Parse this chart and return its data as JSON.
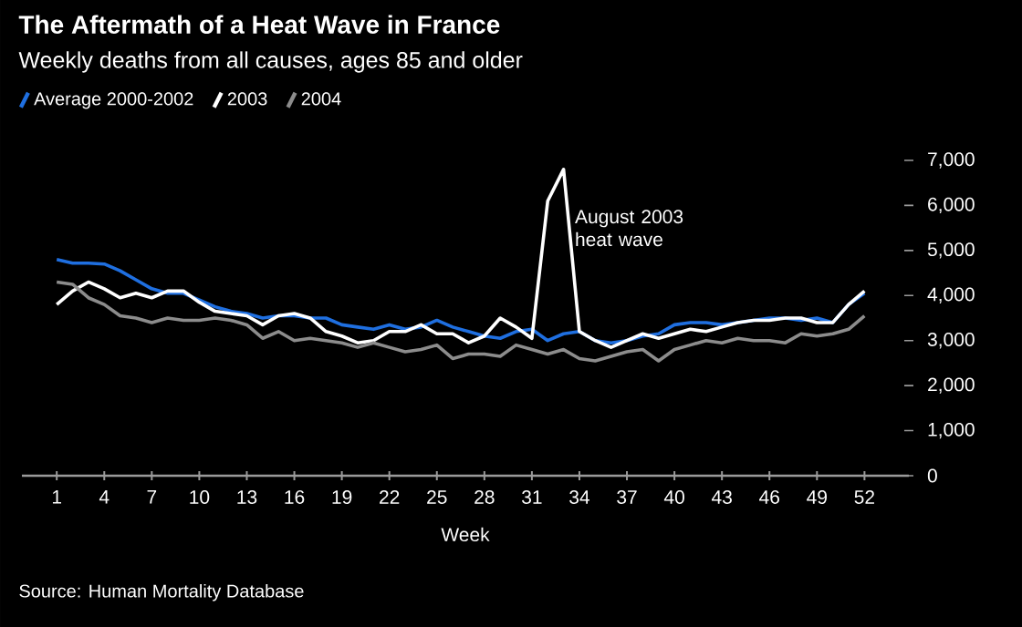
{
  "chart_data": {
    "type": "line",
    "title": "The Aftermath of a Heat Wave in France",
    "subtitle": "Weekly deaths from all causes, ages 85 and older",
    "xlabel": "Week",
    "x": [
      1,
      2,
      3,
      4,
      5,
      6,
      7,
      8,
      9,
      10,
      11,
      12,
      13,
      14,
      15,
      16,
      17,
      18,
      19,
      20,
      21,
      22,
      23,
      24,
      25,
      26,
      27,
      28,
      29,
      30,
      31,
      32,
      33,
      34,
      35,
      36,
      37,
      38,
      39,
      40,
      41,
      42,
      43,
      44,
      45,
      46,
      47,
      48,
      49,
      50,
      51,
      52
    ],
    "series": [
      {
        "name": "Average 2000-2002",
        "color": "#1f6fe0",
        "values": [
          4800,
          4720,
          4720,
          4700,
          4550,
          4350,
          4150,
          4050,
          4050,
          3900,
          3750,
          3650,
          3600,
          3500,
          3550,
          3550,
          3500,
          3500,
          3350,
          3300,
          3250,
          3350,
          3250,
          3300,
          3450,
          3300,
          3200,
          3100,
          3050,
          3200,
          3250,
          3000,
          3150,
          3200,
          3000,
          2950,
          3000,
          3100,
          3150,
          3350,
          3400,
          3400,
          3350,
          3400,
          3450,
          3500,
          3500,
          3450,
          3500,
          3400,
          3800,
          4050
        ]
      },
      {
        "name": "2003",
        "color": "#ffffff",
        "values": [
          3800,
          4100,
          4300,
          4150,
          3950,
          4050,
          3950,
          4100,
          4100,
          3850,
          3650,
          3600,
          3550,
          3350,
          3550,
          3600,
          3500,
          3200,
          3100,
          2950,
          3000,
          3200,
          3200,
          3350,
          3150,
          3150,
          2950,
          3100,
          3500,
          3300,
          3050,
          6100,
          6800,
          3200,
          3000,
          2850,
          3000,
          3150,
          3050,
          3150,
          3250,
          3200,
          3300,
          3400,
          3450,
          3450,
          3500,
          3500,
          3400,
          3400,
          3800,
          4100
        ]
      },
      {
        "name": "2004",
        "color": "#8c8c8c",
        "values": [
          4300,
          4250,
          3950,
          3800,
          3550,
          3500,
          3400,
          3500,
          3450,
          3450,
          3500,
          3450,
          3350,
          3050,
          3200,
          3000,
          3050,
          3000,
          2950,
          2850,
          2950,
          2850,
          2750,
          2800,
          2900,
          2600,
          2700,
          2700,
          2650,
          2900,
          2800,
          2700,
          2800,
          2600,
          2550,
          2650,
          2750,
          2800,
          2550,
          2800,
          2900,
          3000,
          2950,
          3050,
          3000,
          3000,
          2950,
          3150,
          3100,
          3150,
          3250,
          3550
        ]
      }
    ],
    "xlim": [
      -1.2,
      54.8
    ],
    "xticks": [
      1,
      4,
      7,
      10,
      13,
      16,
      19,
      22,
      25,
      28,
      31,
      34,
      37,
      40,
      43,
      46,
      49,
      52
    ],
    "ylim": [
      0,
      7000
    ],
    "yticks": [
      0,
      {
        "value": 1000,
        "label": "1,000"
      },
      {
        "value": 2000,
        "label": "2,000"
      },
      {
        "value": 3000,
        "label": "3,000"
      },
      {
        "value": 4000,
        "label": "4,000"
      },
      {
        "value": 5000,
        "label": "5,000"
      },
      {
        "value": 6000,
        "label": "6,000"
      },
      {
        "value": 7000,
        "label": "7,000"
      }
    ],
    "annotations": [
      {
        "text": "August 2003 heat wave",
        "x": 33,
        "y": 6800
      },
      "Source: Human Mortality Database"
    ],
    "legend": "top left",
    "grid": false,
    "marker": "none",
    "line_style": "solid"
  }
}
